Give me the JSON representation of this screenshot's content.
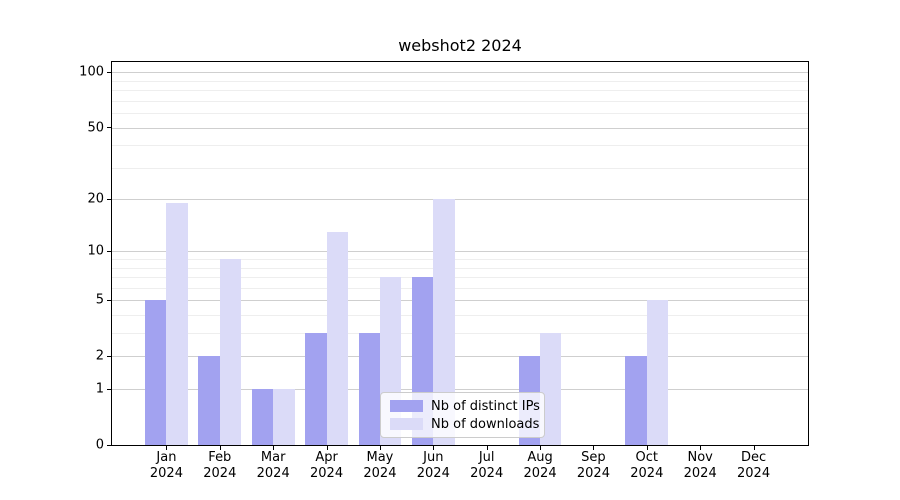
{
  "title": "webshot2 2024",
  "colors": {
    "distinct_ips_bar": "#a2a2f0",
    "downloads_bar": "#dbdbf8",
    "grid_major": "#cfcfcf",
    "grid_minor": "#eeeeee",
    "axis": "#000000",
    "legend_border": "#cccccc"
  },
  "chart_data": {
    "type": "bar",
    "title": "webshot2 2024",
    "categories": [
      "Jan 2024",
      "Feb 2024",
      "Mar 2024",
      "Apr 2024",
      "May 2024",
      "Jun 2024",
      "Jul 2024",
      "Aug 2024",
      "Sep 2024",
      "Oct 2024",
      "Nov 2024",
      "Dec 2024"
    ],
    "x_tick_months": [
      "Jan",
      "Feb",
      "Mar",
      "Apr",
      "May",
      "Jun",
      "Jul",
      "Aug",
      "Sep",
      "Oct",
      "Nov",
      "Dec"
    ],
    "x_tick_year": "2024",
    "series": [
      {
        "name": "Nb of distinct IPs",
        "color": "#a2a2f0",
        "values": [
          5,
          2,
          1,
          3,
          3,
          7,
          0,
          2,
          0,
          2,
          0,
          0
        ]
      },
      {
        "name": "Nb of downloads",
        "color": "#dbdbf8",
        "values": [
          19,
          9,
          1,
          13,
          7,
          20,
          0,
          3,
          0,
          5,
          0,
          0
        ]
      }
    ],
    "xlabel": "",
    "ylabel": "",
    "y_scale": "log1p",
    "y_ticks": [
      0,
      1,
      2,
      5,
      10,
      20,
      50,
      100
    ],
    "y_minor_ticks": [
      3,
      4,
      6,
      7,
      8,
      9,
      30,
      40,
      60,
      70,
      80,
      90
    ],
    "ylim": [
      0,
      114
    ],
    "grid": true,
    "legend_position": "lower center"
  }
}
